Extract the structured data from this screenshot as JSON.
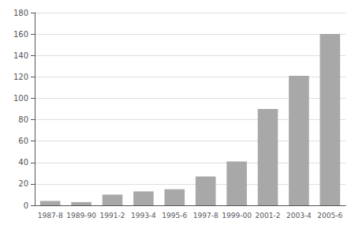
{
  "chart_data": {
    "type": "bar",
    "categories": [
      "1987-8",
      "1989-90",
      "1991-2",
      "1993-4",
      "1995-6",
      "1997-8",
      "1999-00",
      "2001-2",
      "2003-4",
      "2005-6"
    ],
    "values": [
      4,
      3,
      10,
      13,
      15,
      27,
      41,
      90,
      121,
      160
    ],
    "color": "#a8a8a8",
    "ylim": [
      0,
      180
    ],
    "yticks": [
      0,
      20,
      40,
      60,
      80,
      100,
      120,
      140,
      160,
      180
    ],
    "grid": true
  }
}
